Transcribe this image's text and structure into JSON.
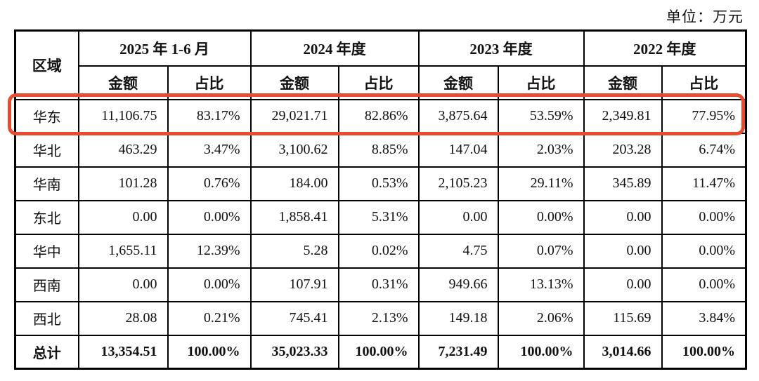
{
  "unit_label": "单位：万元",
  "accent_color": "#e74c2f",
  "table": {
    "region_header": "区域",
    "col_groups": [
      {
        "label": "2025 年 1-6 月"
      },
      {
        "label": "2024 年度"
      },
      {
        "label": "2023 年度"
      },
      {
        "label": "2022 年度"
      }
    ],
    "sub_headers": {
      "amount": "金额",
      "ratio": "占比"
    },
    "rows": [
      {
        "region": "华东",
        "highlighted": true,
        "values": [
          "11,106.75",
          "83.17%",
          "29,021.71",
          "82.86%",
          "3,875.64",
          "53.59%",
          "2,349.81",
          "77.95%"
        ]
      },
      {
        "region": "华北",
        "highlighted": false,
        "values": [
          "463.29",
          "3.47%",
          "3,100.62",
          "8.85%",
          "147.04",
          "2.03%",
          "203.28",
          "6.74%"
        ]
      },
      {
        "region": "华南",
        "highlighted": false,
        "values": [
          "101.28",
          "0.76%",
          "184.00",
          "0.53%",
          "2,105.23",
          "29.11%",
          "345.89",
          "11.47%"
        ]
      },
      {
        "region": "东北",
        "highlighted": false,
        "values": [
          "0.00",
          "0.00%",
          "1,858.41",
          "5.31%",
          "0.00",
          "0.00%",
          "0.00",
          "0.00%"
        ]
      },
      {
        "region": "华中",
        "highlighted": false,
        "values": [
          "1,655.11",
          "12.39%",
          "5.28",
          "0.02%",
          "4.75",
          "0.07%",
          "0.00",
          "0.00%"
        ]
      },
      {
        "region": "西南",
        "highlighted": false,
        "values": [
          "0.00",
          "0.00%",
          "107.91",
          "0.31%",
          "949.66",
          "13.13%",
          "0.00",
          "0.00%"
        ]
      },
      {
        "region": "西北",
        "highlighted": false,
        "values": [
          "28.08",
          "0.21%",
          "745.41",
          "2.13%",
          "149.18",
          "2.06%",
          "115.69",
          "3.84%"
        ]
      }
    ],
    "total_row": {
      "region": "总计",
      "values": [
        "13,354.51",
        "100.00%",
        "35,023.33",
        "100.00%",
        "7,231.49",
        "100.00%",
        "3,014.66",
        "100.00%"
      ]
    }
  },
  "chart_data": {
    "type": "table",
    "title": "区域收入分布",
    "unit": "万元",
    "categories": [
      "华东",
      "华北",
      "华南",
      "东北",
      "华中",
      "西南",
      "西北"
    ],
    "series": [
      {
        "name": "2025 年 1-6 月 金额",
        "values": [
          11106.75,
          463.29,
          101.28,
          0.0,
          1655.11,
          0.0,
          28.08
        ],
        "total": 13354.51
      },
      {
        "name": "2025 年 1-6 月 占比",
        "values": [
          "83.17%",
          "3.47%",
          "0.76%",
          "0.00%",
          "12.39%",
          "0.00%",
          "0.21%"
        ],
        "total": "100.00%"
      },
      {
        "name": "2024 年度 金额",
        "values": [
          29021.71,
          3100.62,
          184.0,
          1858.41,
          5.28,
          107.91,
          745.41
        ],
        "total": 35023.33
      },
      {
        "name": "2024 年度 占比",
        "values": [
          "82.86%",
          "8.85%",
          "0.53%",
          "5.31%",
          "0.02%",
          "0.31%",
          "2.13%"
        ],
        "total": "100.00%"
      },
      {
        "name": "2023 年度 金额",
        "values": [
          3875.64,
          147.04,
          2105.23,
          0.0,
          4.75,
          949.66,
          149.18
        ],
        "total": 7231.49
      },
      {
        "name": "2023 年度 占比",
        "values": [
          "53.59%",
          "2.03%",
          "29.11%",
          "0.00%",
          "0.07%",
          "13.13%",
          "2.06%"
        ],
        "total": "100.00%"
      },
      {
        "name": "2022 年度 金额",
        "values": [
          2349.81,
          203.28,
          345.89,
          0.0,
          0.0,
          0.0,
          115.69
        ],
        "total": 3014.66
      },
      {
        "name": "2022 年度 占比",
        "values": [
          "77.95%",
          "6.74%",
          "11.47%",
          "0.00%",
          "0.00%",
          "0.00%",
          "3.84%"
        ],
        "total": "100.00%"
      }
    ],
    "annotations": [
      "华东行以红色圆角框高亮标注"
    ]
  }
}
